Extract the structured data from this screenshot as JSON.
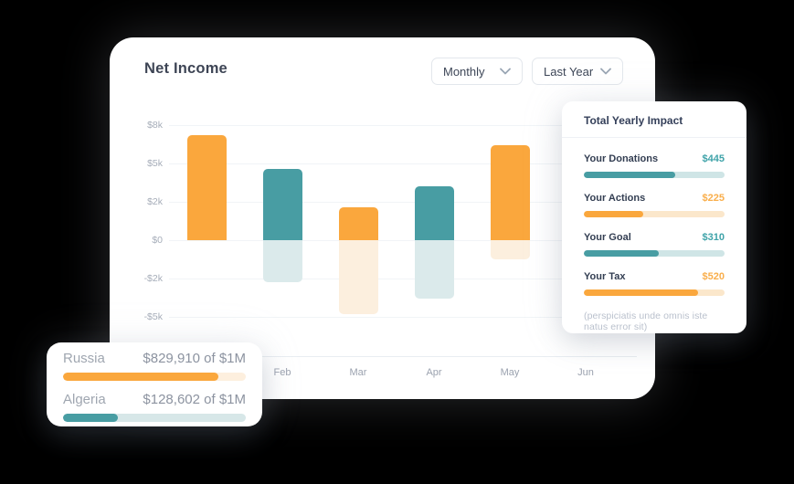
{
  "colors": {
    "orange": "#FAA73D",
    "teal": "#489DA3",
    "orange_faded": "#FCEFDE",
    "teal_faded": "#DBEAEB",
    "orange_track": "#FBE7CB",
    "teal_track": "#CFE5E6",
    "orange_track_light": "#FDEFDE",
    "teal_track_light": "#D7E7E8",
    "orange_text": "#F9AE4B",
    "teal_text": "#3FA3A9"
  },
  "icons": {
    "select_chevron": "chevron-down"
  },
  "header": {
    "title": "Net Income",
    "period_select": "Monthly",
    "range_select": "Last Year"
  },
  "chart_data": {
    "type": "bar",
    "title": "Net Income",
    "y_tick_labels": [
      "$8k",
      "$5k",
      "$2k",
      "$0",
      "-$2k",
      "-$5k"
    ],
    "y_tick_values": [
      8000,
      5000,
      2000,
      0,
      -2000,
      -5000
    ],
    "x_tick_labels_visible": [
      "Feb",
      "Mar",
      "Apr",
      "May",
      "Jun"
    ],
    "grid": true,
    "bars": [
      {
        "slot": 0,
        "positive": 7200,
        "negative": 0,
        "color": "orange"
      },
      {
        "slot": 1,
        "positive": 4600,
        "negative": -2300,
        "color": "teal"
      },
      {
        "slot": 2,
        "positive": 1700,
        "negative": -4800,
        "color": "orange"
      },
      {
        "slot": 3,
        "positive": 3200,
        "negative": -3600,
        "color": "teal"
      },
      {
        "slot": 4,
        "positive": 6400,
        "negative": -1000,
        "color": "orange"
      }
    ],
    "notes": "First bar's month label is occluded by an overlay card; Jun slot has no bar. Negative portions are drawn faded."
  },
  "impact_panel": {
    "title": "Total Yearly Impact",
    "items": [
      {
        "label": "Your Donations",
        "value": "$445",
        "percent": 65,
        "color": "teal"
      },
      {
        "label": "Your Actions",
        "value": "$225",
        "percent": 42,
        "color": "orange"
      },
      {
        "label": "Your Goal",
        "value": "$310",
        "percent": 53,
        "color": "teal"
      },
      {
        "label": "Your Tax",
        "value": "$520",
        "percent": 81,
        "color": "orange"
      }
    ],
    "footnote": "(perspiciatis unde omnis iste natus error sit)"
  },
  "countries_card": {
    "items": [
      {
        "label": "Russia",
        "value": "$829,910 of $1M",
        "percent": 85,
        "color": "orange"
      },
      {
        "label": "Algeria",
        "value": "$128,602 of $1M",
        "percent": 30,
        "color": "teal"
      }
    ]
  }
}
